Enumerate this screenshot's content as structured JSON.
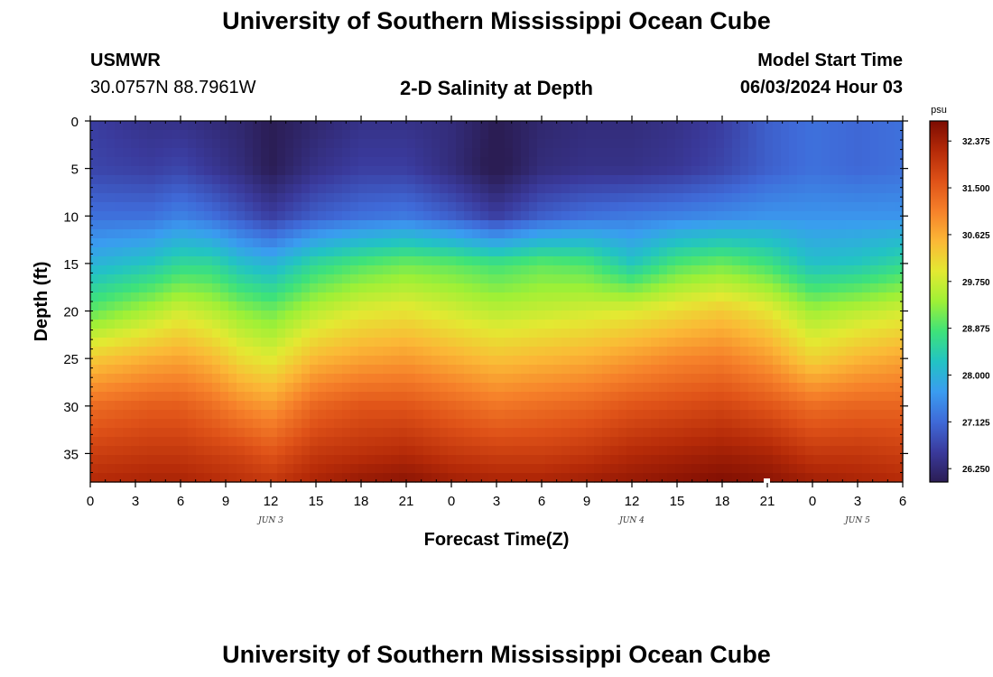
{
  "page": {
    "title": "University of Southern Mississippi Ocean Cube",
    "bottom_title": "University of Southern Mississippi Ocean Cube",
    "station": "USMWR",
    "coords": "30.0757N  88.7961W",
    "plot_title": "2-D Salinity at Depth",
    "model_label": "Model Start Time",
    "model_time": "06/03/2024 Hour 03"
  },
  "colorbar": {
    "unit": "psu",
    "min": 26.0,
    "max": 32.75,
    "ticks": [
      "32.375",
      "31.500",
      "30.625",
      "29.750",
      "28.875",
      "28.000",
      "27.125",
      "26.250"
    ],
    "tick_values": [
      32.375,
      31.5,
      30.625,
      29.75,
      28.875,
      28.0,
      27.125,
      26.25
    ],
    "colors": [
      "#2b1d54",
      "#3a3a9c",
      "#3f6ad8",
      "#3a9cf0",
      "#22c3c4",
      "#3ee27a",
      "#9ef036",
      "#e3e932",
      "#fbb836",
      "#f6812a",
      "#df5218",
      "#b52a08",
      "#7c0c02"
    ]
  },
  "chart_data": {
    "type": "heatmap",
    "title": "2-D Salinity at Depth",
    "xlabel": "Forecast Time(Z)",
    "ylabel": "Depth (ft)",
    "x_range_hours": [
      0,
      54
    ],
    "y_range_ft": [
      0,
      38
    ],
    "x_tick_hours": [
      0,
      3,
      6,
      9,
      12,
      15,
      18,
      21,
      24,
      27,
      30,
      33,
      36,
      39,
      42,
      45,
      48,
      51,
      54
    ],
    "x_tick_labels": [
      "0",
      "3",
      "6",
      "9",
      "12",
      "15",
      "18",
      "21",
      "0",
      "3",
      "6",
      "9",
      "12",
      "15",
      "18",
      "21",
      "0",
      "3",
      "6"
    ],
    "y_tick_values": [
      0,
      5,
      10,
      15,
      20,
      25,
      30,
      35
    ],
    "y_tick_labels": [
      "0",
      "5",
      "10",
      "15",
      "20",
      "25",
      "30",
      "35"
    ],
    "date_labels": [
      {
        "text": "JUN 3",
        "hour": 12
      },
      {
        "text": "JUN 4",
        "hour": 36
      },
      {
        "text": "JUN 5",
        "hour": 51
      }
    ],
    "profile_hours": [
      0,
      4,
      6,
      8,
      10,
      12,
      15,
      18,
      21,
      24,
      27,
      30,
      33,
      36,
      39,
      42,
      45,
      48,
      51,
      54
    ],
    "profile_depths": [
      0,
      5,
      10,
      15,
      20,
      25,
      30,
      35,
      38
    ],
    "salinity_psu": [
      [
        26.6,
        26.7,
        27.2,
        28.0,
        29.0,
        30.3,
        31.3,
        31.9,
        32.2
      ],
      [
        26.4,
        26.6,
        27.2,
        28.3,
        29.5,
        30.6,
        31.5,
        32.0,
        32.3
      ],
      [
        26.4,
        26.7,
        27.4,
        28.6,
        29.8,
        30.7,
        31.5,
        32.0,
        32.3
      ],
      [
        26.3,
        26.5,
        27.2,
        28.6,
        29.6,
        30.5,
        31.3,
        31.9,
        32.2
      ],
      [
        26.2,
        26.3,
        26.9,
        28.2,
        29.3,
        30.1,
        31.0,
        31.8,
        32.1
      ],
      [
        26.0,
        26.0,
        26.6,
        28.0,
        29.1,
        29.9,
        30.8,
        31.6,
        32.0
      ],
      [
        26.2,
        26.4,
        27.0,
        28.6,
        29.6,
        30.5,
        31.4,
        32.0,
        32.3
      ],
      [
        26.4,
        26.6,
        27.2,
        28.9,
        29.9,
        30.7,
        31.6,
        32.1,
        32.5
      ],
      [
        26.4,
        26.6,
        27.3,
        29.1,
        30.0,
        30.8,
        31.6,
        32.2,
        32.6
      ],
      [
        26.3,
        26.3,
        27.0,
        29.0,
        29.8,
        30.6,
        31.4,
        32.0,
        32.4
      ],
      [
        26.0,
        25.9,
        26.6,
        28.8,
        29.6,
        30.4,
        31.2,
        31.9,
        32.3
      ],
      [
        26.2,
        26.3,
        27.0,
        29.0,
        29.7,
        30.5,
        31.3,
        31.9,
        32.3
      ],
      [
        26.3,
        26.4,
        27.2,
        28.9,
        29.8,
        30.6,
        31.4,
        32.0,
        32.4
      ],
      [
        26.3,
        26.4,
        27.3,
        28.3,
        29.9,
        30.8,
        31.6,
        32.2,
        32.5
      ],
      [
        26.4,
        26.5,
        27.4,
        28.9,
        30.1,
        31.0,
        31.7,
        32.3,
        32.6
      ],
      [
        26.6,
        26.7,
        27.5,
        29.1,
        30.3,
        31.1,
        31.8,
        32.4,
        32.7
      ],
      [
        27.0,
        27.0,
        27.6,
        28.8,
        30.0,
        30.8,
        31.6,
        32.3,
        32.6
      ],
      [
        27.2,
        27.2,
        27.6,
        28.2,
        29.4,
        30.2,
        31.3,
        32.0,
        32.4
      ],
      [
        27.1,
        27.1,
        27.6,
        28.3,
        29.6,
        30.5,
        31.4,
        32.0,
        32.3
      ],
      [
        27.2,
        27.2,
        27.6,
        28.6,
        29.8,
        30.7,
        31.4,
        31.9,
        32.2
      ]
    ]
  }
}
